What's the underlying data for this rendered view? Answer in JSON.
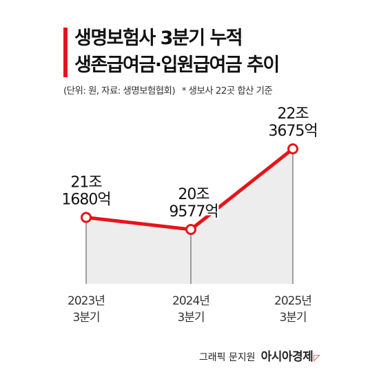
{
  "title_line1": "생명보험사 3분기 누적",
  "title_line2": "생존급여금·입원급여금 추이",
  "source_note": "(단위: 원, 자료: 생명보험협회)",
  "footnote": "* 생보사 22곳 합산 기준",
  "credit": {
    "graphic_by": "그래픽 문지원",
    "publisher": "아시아경제"
  },
  "colors": {
    "accent": "#e5141b",
    "area_fill": "#ededed",
    "marker_fill": "#ffffff"
  },
  "chart_data": {
    "type": "line",
    "title": "생명보험사 3분기 누적 생존급여금·입원급여금 추이",
    "unit": "원",
    "categories": [
      "2023년 3분기",
      "2024년 3분기",
      "2025년 3분기"
    ],
    "category_lines": [
      [
        "2023년",
        "3분기"
      ],
      [
        "2024년",
        "3분기"
      ],
      [
        "2025년",
        "3분기"
      ]
    ],
    "series": [
      {
        "values": [
          21168000000000,
          20957700000000,
          22367500000000
        ],
        "labels": [
          [
            "21조",
            "1680억"
          ],
          [
            "20조",
            "9577억"
          ],
          [
            "22조",
            "3675억"
          ]
        ]
      }
    ],
    "fill_below": true,
    "grid": false,
    "legend": "none"
  }
}
